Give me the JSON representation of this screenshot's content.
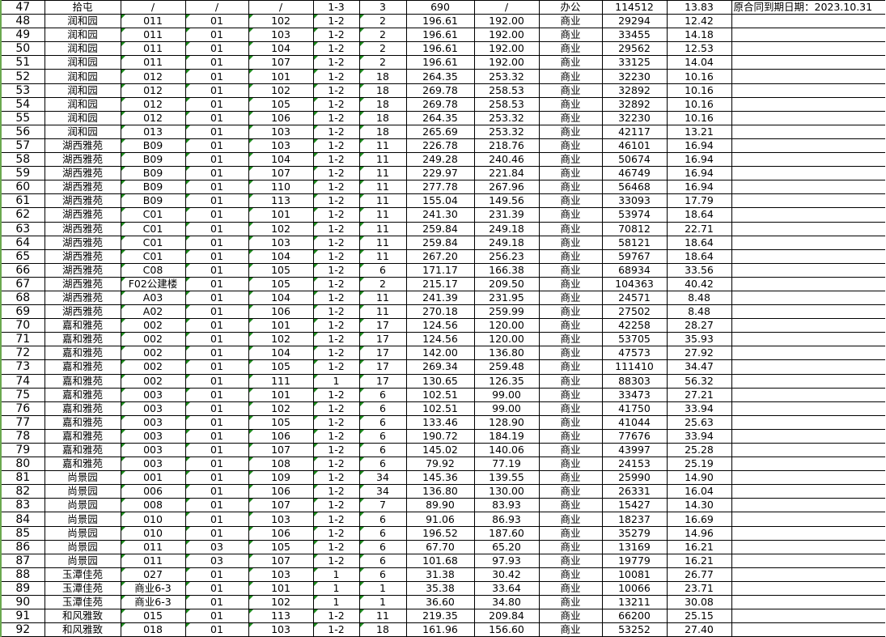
{
  "note": "原合同到期日期：2023.10.31",
  "accent_green": "#1e8a1e",
  "rows": [
    [
      "47",
      "拾屯",
      "/",
      "/",
      "/",
      "1-3",
      "3",
      "690",
      "/",
      "办公",
      "114512",
      "13.83"
    ],
    [
      "48",
      "润和园",
      "011",
      "01",
      "102",
      "1-2",
      "2",
      "196.61",
      "192.00",
      "商业",
      "29294",
      "12.42"
    ],
    [
      "49",
      "润和园",
      "011",
      "01",
      "103",
      "1-2",
      "2",
      "196.61",
      "192.00",
      "商业",
      "33455",
      "14.18"
    ],
    [
      "50",
      "润和园",
      "011",
      "01",
      "104",
      "1-2",
      "2",
      "196.61",
      "192.00",
      "商业",
      "29562",
      "12.53"
    ],
    [
      "51",
      "润和园",
      "011",
      "01",
      "107",
      "1-2",
      "2",
      "196.61",
      "192.00",
      "商业",
      "33125",
      "14.04"
    ],
    [
      "52",
      "润和园",
      "012",
      "01",
      "101",
      "1-2",
      "18",
      "264.35",
      "253.32",
      "商业",
      "32230",
      "10.16"
    ],
    [
      "53",
      "润和园",
      "012",
      "01",
      "102",
      "1-2",
      "18",
      "269.78",
      "258.53",
      "商业",
      "32892",
      "10.16"
    ],
    [
      "54",
      "润和园",
      "012",
      "01",
      "105",
      "1-2",
      "18",
      "269.78",
      "258.53",
      "商业",
      "32892",
      "10.16"
    ],
    [
      "55",
      "润和园",
      "012",
      "01",
      "106",
      "1-2",
      "18",
      "264.35",
      "253.32",
      "商业",
      "32230",
      "10.16"
    ],
    [
      "56",
      "润和园",
      "013",
      "01",
      "103",
      "1-2",
      "18",
      "265.69",
      "253.32",
      "商业",
      "42117",
      "13.21"
    ],
    [
      "57",
      "湖西雅苑",
      "B09",
      "01",
      "103",
      "1-2",
      "11",
      "226.78",
      "218.76",
      "商业",
      "46101",
      "16.94"
    ],
    [
      "58",
      "湖西雅苑",
      "B09",
      "01",
      "104",
      "1-2",
      "11",
      "249.28",
      "240.46",
      "商业",
      "50674",
      "16.94"
    ],
    [
      "59",
      "湖西雅苑",
      "B09",
      "01",
      "107",
      "1-2",
      "11",
      "229.97",
      "221.84",
      "商业",
      "46749",
      "16.94"
    ],
    [
      "60",
      "湖西雅苑",
      "B09",
      "01",
      "110",
      "1-2",
      "11",
      "277.78",
      "267.96",
      "商业",
      "56468",
      "16.94"
    ],
    [
      "61",
      "湖西雅苑",
      "B09",
      "01",
      "113",
      "1-2",
      "11",
      "155.04",
      "149.56",
      "商业",
      "33093",
      "17.79"
    ],
    [
      "62",
      "湖西雅苑",
      "C01",
      "01",
      "101",
      "1-2",
      "11",
      "241.30",
      "231.39",
      "商业",
      "53974",
      "18.64"
    ],
    [
      "63",
      "湖西雅苑",
      "C01",
      "01",
      "102",
      "1-2",
      "11",
      "259.84",
      "249.18",
      "商业",
      "70812",
      "22.71"
    ],
    [
      "64",
      "湖西雅苑",
      "C01",
      "01",
      "103",
      "1-2",
      "11",
      "259.84",
      "249.18",
      "商业",
      "58121",
      "18.64"
    ],
    [
      "65",
      "湖西雅苑",
      "C01",
      "01",
      "104",
      "1-2",
      "11",
      "267.20",
      "256.23",
      "商业",
      "59767",
      "18.64"
    ],
    [
      "66",
      "湖西雅苑",
      "C08",
      "01",
      "105",
      "1-2",
      "6",
      "171.17",
      "166.38",
      "商业",
      "68934",
      "33.56"
    ],
    [
      "67",
      "湖西雅苑",
      "F02公建楼",
      "01",
      "105",
      "1-2",
      "2",
      "215.17",
      "209.50",
      "商业",
      "104363",
      "40.42"
    ],
    [
      "68",
      "湖西雅苑",
      "A03",
      "01",
      "104",
      "1-2",
      "11",
      "241.39",
      "231.95",
      "商业",
      "24571",
      "8.48"
    ],
    [
      "69",
      "湖西雅苑",
      "A02",
      "01",
      "106",
      "1-2",
      "11",
      "270.18",
      "259.99",
      "商业",
      "27502",
      "8.48"
    ],
    [
      "70",
      "嘉和雅苑",
      "002",
      "01",
      "101",
      "1-2",
      "17",
      "124.56",
      "120.00",
      "商业",
      "42258",
      "28.27"
    ],
    [
      "71",
      "嘉和雅苑",
      "002",
      "01",
      "102",
      "1-2",
      "17",
      "124.56",
      "120.00",
      "商业",
      "53705",
      "35.93"
    ],
    [
      "72",
      "嘉和雅苑",
      "002",
      "01",
      "104",
      "1-2",
      "17",
      "142.00",
      "136.80",
      "商业",
      "47573",
      "27.92"
    ],
    [
      "73",
      "嘉和雅苑",
      "002",
      "01",
      "105",
      "1-2",
      "17",
      "269.34",
      "259.48",
      "商业",
      "111410",
      "34.47"
    ],
    [
      "74",
      "嘉和雅苑",
      "002",
      "01",
      "111",
      "1",
      "17",
      "130.65",
      "126.35",
      "商业",
      "88303",
      "56.32"
    ],
    [
      "75",
      "嘉和雅苑",
      "003",
      "01",
      "101",
      "1-2",
      "6",
      "102.51",
      "99.00",
      "商业",
      "33473",
      "27.21"
    ],
    [
      "76",
      "嘉和雅苑",
      "003",
      "01",
      "102",
      "1-2",
      "6",
      "102.51",
      "99.00",
      "商业",
      "41750",
      "33.94"
    ],
    [
      "77",
      "嘉和雅苑",
      "003",
      "01",
      "105",
      "1-2",
      "6",
      "133.46",
      "128.90",
      "商业",
      "41044",
      "25.63"
    ],
    [
      "78",
      "嘉和雅苑",
      "003",
      "01",
      "106",
      "1-2",
      "6",
      "190.72",
      "184.19",
      "商业",
      "77676",
      "33.94"
    ],
    [
      "79",
      "嘉和雅苑",
      "003",
      "01",
      "107",
      "1-2",
      "6",
      "145.02",
      "140.06",
      "商业",
      "43997",
      "25.28"
    ],
    [
      "80",
      "嘉和雅苑",
      "003",
      "01",
      "108",
      "1-2",
      "6",
      "79.92",
      "77.19",
      "商业",
      "24153",
      "25.19"
    ],
    [
      "81",
      "尚景园",
      "001",
      "01",
      "109",
      "1-2",
      "34",
      "145.36",
      "139.55",
      "商业",
      "25990",
      "14.90"
    ],
    [
      "82",
      "尚景园",
      "006",
      "01",
      "106",
      "1-2",
      "34",
      "136.80",
      "130.00",
      "商业",
      "26331",
      "16.04"
    ],
    [
      "83",
      "尚景园",
      "008",
      "01",
      "107",
      "1-2",
      "7",
      "89.90",
      "83.93",
      "商业",
      "15427",
      "14.30"
    ],
    [
      "84",
      "尚景园",
      "010",
      "01",
      "103",
      "1-2",
      "6",
      "91.06",
      "86.93",
      "商业",
      "18237",
      "16.69"
    ],
    [
      "85",
      "尚景园",
      "010",
      "01",
      "106",
      "1-2",
      "6",
      "196.52",
      "187.60",
      "商业",
      "35279",
      "14.96"
    ],
    [
      "86",
      "尚景园",
      "011",
      "03",
      "105",
      "1-2",
      "6",
      "67.70",
      "65.20",
      "商业",
      "13169",
      "16.21"
    ],
    [
      "87",
      "尚景园",
      "011",
      "03",
      "107",
      "1-2",
      "6",
      "101.68",
      "97.93",
      "商业",
      "19779",
      "16.21"
    ],
    [
      "88",
      "玉潭佳苑",
      "027",
      "01",
      "103",
      "1",
      "6",
      "31.38",
      "30.42",
      "商业",
      "10081",
      "26.77"
    ],
    [
      "89",
      "玉潭佳苑",
      "商业6-3",
      "01",
      "101",
      "1",
      "1",
      "35.38",
      "33.64",
      "商业",
      "10066",
      "23.71"
    ],
    [
      "90",
      "玉潭佳苑",
      "商业6-3",
      "01",
      "102",
      "1",
      "1",
      "36.60",
      "34.80",
      "商业",
      "13211",
      "30.08"
    ],
    [
      "91",
      "和风雅致",
      "015",
      "01",
      "113",
      "1-2",
      "11",
      "219.35",
      "209.84",
      "商业",
      "66200",
      "25.15"
    ],
    [
      "92",
      "和风雅致",
      "018",
      "01",
      "103",
      "1-2",
      "18",
      "161.96",
      "156.60",
      "商业",
      "53252",
      "27.40"
    ]
  ]
}
